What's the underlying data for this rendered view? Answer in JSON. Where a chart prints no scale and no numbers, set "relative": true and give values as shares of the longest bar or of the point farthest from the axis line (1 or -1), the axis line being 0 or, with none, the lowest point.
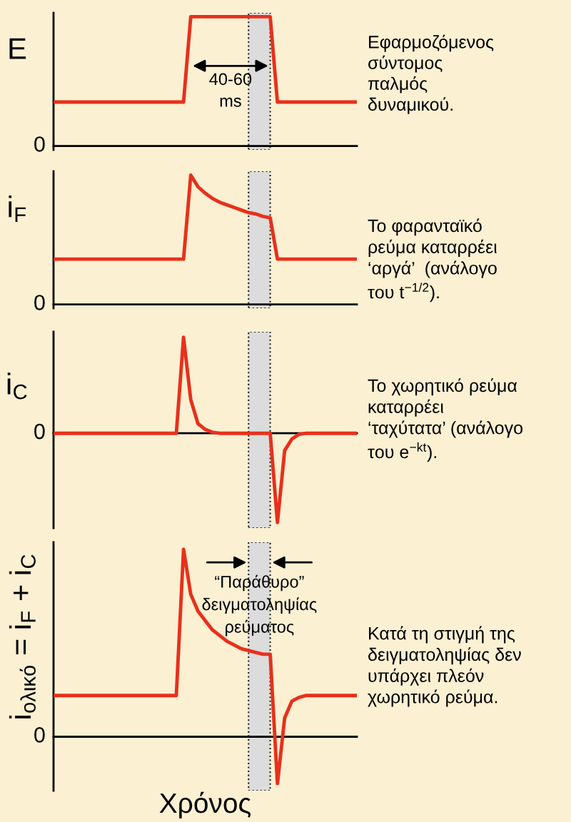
{
  "chart_data": [
    {
      "type": "line",
      "relative": true,
      "ylabel": "E",
      "categories": [
        null,
        null,
        null,
        null,
        null,
        null,
        null,
        null,
        null,
        null,
        null,
        null,
        null,
        null,
        null,
        null,
        null,
        null,
        null,
        null,
        null,
        null,
        null,
        null,
        null,
        null,
        null,
        null,
        null,
        null,
        null,
        null,
        null,
        null,
        null,
        null,
        null,
        null,
        null,
        null,
        null,
        null,
        null
      ],
      "line_style": "solid",
      "series": [
        {
          "color": "#e8301c",
          "values": [
            0.34,
            0.34,
            0.34,
            0.34,
            0.34,
            0.34,
            0.34,
            0.34,
            0.34,
            0.34,
            0.34,
            0.34,
            0.34,
            0.34,
            0.34,
            0.34,
            0.34,
            0.34,
            0.34,
            1,
            1,
            1,
            1,
            1,
            1,
            1,
            1,
            1,
            1,
            1,
            1,
            0.34,
            0.34,
            0.34,
            0.34,
            0.34,
            0.34,
            0.34,
            0.34,
            0.34,
            0.34,
            0.34,
            0.34
          ]
        }
      ],
      "annotations": [
        "0",
        "40-60\nms",
        "Εφαρμοζόμενος\nσύντομος\nπαλμός\nδυναμικού."
      ]
    },
    {
      "type": "line",
      "relative": true,
      "ylabel": "i$_{F}$",
      "categories": [
        null,
        null,
        null,
        null,
        null,
        null,
        null,
        null,
        null,
        null,
        null,
        null,
        null,
        null,
        null,
        null,
        null,
        null,
        null,
        null,
        null,
        null,
        null,
        null,
        null,
        null,
        null,
        null,
        null,
        null,
        null,
        null,
        null,
        null,
        null,
        null,
        null,
        null,
        null,
        null,
        null,
        null,
        null
      ],
      "line_style": "solid",
      "series": [
        {
          "color": "#e8301c",
          "values": [
            0.35,
            0.35,
            0.35,
            0.35,
            0.35,
            0.35,
            0.35,
            0.35,
            0.35,
            0.35,
            0.35,
            0.35,
            0.35,
            0.35,
            0.35,
            0.35,
            0.35,
            0.35,
            0.35,
            1,
            0.91,
            0.86,
            0.82,
            0.79,
            0.77,
            0.75,
            0.73,
            0.71,
            0.7,
            0.68,
            0.67,
            0.35,
            0.35,
            0.35,
            0.35,
            0.35,
            0.35,
            0.35,
            0.35,
            0.35,
            0.35,
            0.35,
            0.35
          ]
        }
      ],
      "annotations": [
        "0",
        "Το φαρανταϊκό\nρεύμα καταρρέει\n‘αργά’  (ανάλογο\nτου t$^{−1/2}$)."
      ]
    },
    {
      "type": "line",
      "relative": true,
      "ylabel": "i$_{C}$",
      "categories": [
        null,
        null,
        null,
        null,
        null,
        null,
        null,
        null,
        null,
        null,
        null,
        null,
        null,
        null,
        null,
        null,
        null,
        null,
        null,
        null,
        null,
        null,
        null,
        null,
        null,
        null,
        null,
        null,
        null,
        null,
        null,
        null,
        null,
        null,
        null,
        null,
        null,
        null,
        null,
        null,
        null,
        null,
        null
      ],
      "line_style": "solid",
      "series": [
        {
          "color": "#e8301c",
          "values": [
            0,
            0,
            0,
            0,
            0,
            0,
            0,
            0,
            0,
            0,
            0,
            0,
            0,
            0,
            0,
            0,
            0,
            0,
            1,
            0.35,
            0.1,
            0.04,
            0.01,
            0,
            0,
            0,
            0,
            0,
            0,
            0,
            0,
            -0.93,
            -0.18,
            -0.06,
            -0.01,
            0,
            0,
            0,
            0,
            0,
            0,
            0,
            0
          ]
        }
      ],
      "annotations": [
        "0",
        "Το χωρητικό ρεύμα\nκαταρρέει\n‘ταχύτατα’ (ανάλογο\nτου e$^{−kt}$)."
      ]
    },
    {
      "type": "line",
      "relative": true,
      "ylabel": "i$_{ολικό}$ = i$_{F}$ + i$_{C}$",
      "xlabel": "Χρόνος",
      "categories": [
        null,
        null,
        null,
        null,
        null,
        null,
        null,
        null,
        null,
        null,
        null,
        null,
        null,
        null,
        null,
        null,
        null,
        null,
        null,
        null,
        null,
        null,
        null,
        null,
        null,
        null,
        null,
        null,
        null,
        null,
        null,
        null,
        null,
        null,
        null,
        null,
        null,
        null,
        null,
        null,
        null,
        null,
        null
      ],
      "line_style": "solid",
      "series": [
        {
          "color": "#e8301c",
          "values": [
            0.22,
            0.22,
            0.22,
            0.22,
            0.22,
            0.22,
            0.22,
            0.22,
            0.22,
            0.22,
            0.22,
            0.22,
            0.22,
            0.22,
            0.22,
            0.22,
            0.22,
            0.22,
            1,
            0.76,
            0.67,
            0.62,
            0.57,
            0.54,
            0.51,
            0.49,
            0.47,
            0.46,
            0.45,
            0.44,
            0.44,
            -0.25,
            0.1,
            0.19,
            0.21,
            0.22,
            0.22,
            0.22,
            0.22,
            0.22,
            0.22,
            0.22,
            0.22
          ]
        }
      ],
      "annotations": [
        "0",
        "“Παράθυρο”\nδειγματοληψίας\nρεύματος",
        "Κατά τη στιγμή της\nδειγματοληψίας δεν\nυπάρχει πλεόν\nχωρητικό ρεύμα."
      ]
    }
  ]
}
